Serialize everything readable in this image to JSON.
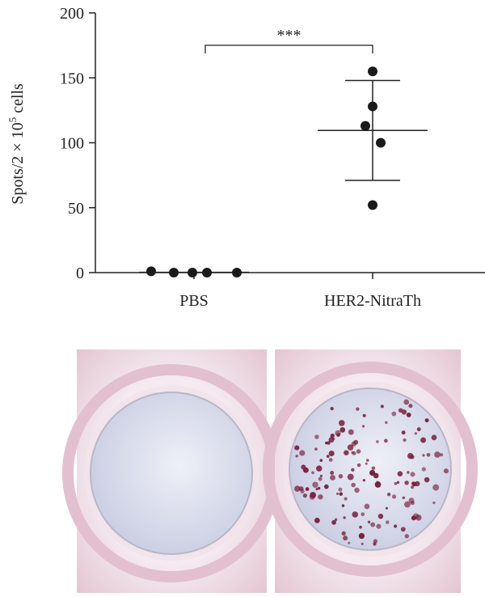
{
  "chart_data": {
    "type": "dotplot",
    "ylabel_parts": [
      "Spots/2 × 10",
      "5",
      " cells"
    ],
    "categories": [
      "PBS",
      "HER2-NitraTh"
    ],
    "groups": [
      {
        "values": [
          1,
          0,
          0,
          0,
          0
        ],
        "mean": 0.2
      },
      {
        "values": [
          155,
          128,
          113,
          100,
          52
        ],
        "mean": 109.5,
        "sd": 38.5
      }
    ],
    "color": "#1a1a1a",
    "ylim": [
      0,
      200
    ],
    "yticks": [
      0,
      50,
      100,
      150,
      200
    ],
    "annotation": "***"
  }
}
